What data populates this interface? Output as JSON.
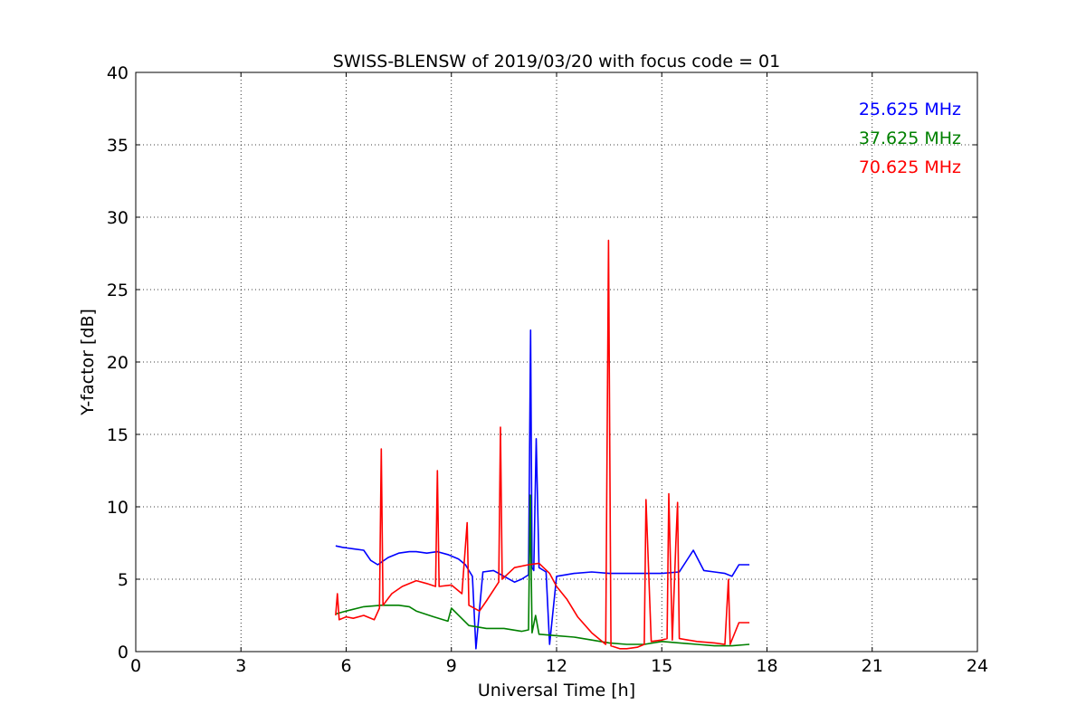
{
  "chart_data": {
    "type": "line",
    "title": "SWISS-BLENSW of 2019/03/20 with focus code = 01",
    "xlabel": "Universal Time [h]",
    "ylabel": "Y-factor [dB]",
    "xlim": [
      0,
      24
    ],
    "ylim": [
      0,
      40
    ],
    "xticks": [
      0,
      3,
      6,
      9,
      12,
      15,
      18,
      21,
      24
    ],
    "yticks": [
      0,
      5,
      10,
      15,
      20,
      25,
      30,
      35,
      40
    ],
    "grid": true,
    "legend_position": "top-right",
    "series": [
      {
        "name": "25.625 MHz",
        "color": "#0000ff",
        "x": [
          5.7,
          5.9,
          6.2,
          6.5,
          6.7,
          6.9,
          7.2,
          7.5,
          7.8,
          8.0,
          8.3,
          8.6,
          8.9,
          9.2,
          9.4,
          9.6,
          9.7,
          9.9,
          10.2,
          10.5,
          10.8,
          11.0,
          11.2,
          11.26,
          11.3,
          11.35,
          11.42,
          11.5,
          11.7,
          11.8,
          12.0,
          12.5,
          13.0,
          13.5,
          14.0,
          14.5,
          15.0,
          15.5,
          15.9,
          16.2,
          16.5,
          16.8,
          17.0,
          17.2,
          17.5
        ],
        "values": [
          7.3,
          7.2,
          7.1,
          7.0,
          6.3,
          6.0,
          6.5,
          6.8,
          6.9,
          6.9,
          6.8,
          6.9,
          6.7,
          6.4,
          6.0,
          5.2,
          0.2,
          5.5,
          5.6,
          5.2,
          4.8,
          5.0,
          5.3,
          22.2,
          5.8,
          5.6,
          14.7,
          5.8,
          5.5,
          0.5,
          5.2,
          5.4,
          5.5,
          5.4,
          5.4,
          5.4,
          5.4,
          5.5,
          7.0,
          5.6,
          5.5,
          5.4,
          5.2,
          6.0,
          6.0
        ]
      },
      {
        "name": "37.625 MHz",
        "color": "#008000",
        "x": [
          5.7,
          6.0,
          6.5,
          7.0,
          7.5,
          7.8,
          8.0,
          8.5,
          8.9,
          9.0,
          9.5,
          10.0,
          10.5,
          11.0,
          11.2,
          11.25,
          11.3,
          11.4,
          11.5,
          12.0,
          12.5,
          13.0,
          13.5,
          14.0,
          14.5,
          15.0,
          15.5,
          16.0,
          16.5,
          17.0,
          17.5
        ],
        "values": [
          2.6,
          2.8,
          3.1,
          3.2,
          3.2,
          3.1,
          2.8,
          2.4,
          2.1,
          3.0,
          1.8,
          1.6,
          1.6,
          1.4,
          1.5,
          10.8,
          1.3,
          2.5,
          1.2,
          1.1,
          1.0,
          0.8,
          0.6,
          0.5,
          0.5,
          0.7,
          0.6,
          0.5,
          0.4,
          0.4,
          0.5
        ]
      },
      {
        "name": "70.625 MHz",
        "color": "#ff0000",
        "x": [
          5.7,
          5.75,
          5.8,
          6.0,
          6.2,
          6.5,
          6.8,
          6.95,
          7.0,
          7.05,
          7.3,
          7.6,
          8.0,
          8.3,
          8.55,
          8.6,
          8.65,
          9.0,
          9.3,
          9.45,
          9.5,
          9.8,
          10.0,
          10.35,
          10.4,
          10.45,
          10.8,
          11.2,
          11.5,
          11.8,
          12.0,
          12.3,
          12.6,
          13.0,
          13.4,
          13.48,
          13.55,
          13.8,
          14.0,
          14.3,
          14.5,
          14.55,
          14.7,
          15.0,
          15.15,
          15.2,
          15.3,
          15.4,
          15.45,
          15.5,
          16.0,
          16.5,
          16.8,
          16.9,
          16.95,
          17.2,
          17.5
        ],
        "values": [
          2.5,
          4.0,
          2.2,
          2.4,
          2.3,
          2.5,
          2.2,
          3.0,
          14.0,
          3.2,
          4.0,
          4.5,
          4.9,
          4.7,
          4.5,
          12.5,
          4.5,
          4.6,
          4.0,
          8.9,
          3.2,
          2.8,
          3.5,
          4.8,
          15.5,
          5.0,
          5.8,
          6.0,
          6.1,
          5.4,
          4.5,
          3.6,
          2.4,
          1.3,
          0.5,
          28.4,
          0.4,
          0.2,
          0.2,
          0.3,
          0.5,
          10.5,
          0.7,
          0.8,
          0.9,
          10.9,
          0.8,
          7.5,
          10.3,
          0.9,
          0.7,
          0.6,
          0.5,
          5.0,
          0.5,
          2.0,
          2.0
        ]
      }
    ]
  }
}
